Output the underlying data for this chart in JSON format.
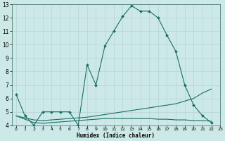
{
  "xlabel": "Humidex (Indice chaleur)",
  "bg_color": "#cce9e7",
  "grid_color": "#b8d8d6",
  "line_color": "#1a6e66",
  "xlim": [
    -0.5,
    23
  ],
  "ylim": [
    4,
    13
  ],
  "xticks": [
    0,
    1,
    2,
    3,
    4,
    5,
    6,
    7,
    8,
    9,
    10,
    11,
    12,
    13,
    14,
    15,
    16,
    17,
    18,
    19,
    20,
    21,
    22,
    23
  ],
  "yticks": [
    4,
    5,
    6,
    7,
    8,
    9,
    10,
    11,
    12,
    13
  ],
  "series": [
    {
      "x": [
        0,
        1,
        2,
        3,
        4,
        5,
        6,
        7,
        8,
        9,
        10,
        11,
        12,
        13,
        14,
        15,
        16,
        17,
        18,
        19,
        20,
        21,
        22
      ],
      "y": [
        6.3,
        4.7,
        4.0,
        5.0,
        5.0,
        5.0,
        5.0,
        4.0,
        8.5,
        7.0,
        9.9,
        11.0,
        12.1,
        12.9,
        12.5,
        12.5,
        12.0,
        10.7,
        9.5,
        7.0,
        5.5,
        4.7,
        4.2
      ],
      "marker": true
    },
    {
      "x": [
        0,
        1,
        2,
        3,
        4,
        5,
        6,
        7,
        8,
        9,
        10,
        11,
        12,
        13,
        14,
        15,
        16,
        17,
        18,
        19,
        20,
        21,
        22
      ],
      "y": [
        4.7,
        4.55,
        4.4,
        4.35,
        4.4,
        4.45,
        4.5,
        4.55,
        4.6,
        4.7,
        4.8,
        4.9,
        5.0,
        5.1,
        5.2,
        5.3,
        5.4,
        5.5,
        5.6,
        5.8,
        6.0,
        6.4,
        6.7
      ],
      "marker": false
    },
    {
      "x": [
        0,
        1,
        2,
        3,
        4,
        5,
        6,
        7,
        8,
        9,
        10,
        11,
        12,
        13,
        14,
        15,
        16,
        17,
        18,
        19,
        20,
        21,
        22
      ],
      "y": [
        4.7,
        4.45,
        4.2,
        4.15,
        4.2,
        4.25,
        4.3,
        4.35,
        4.4,
        4.45,
        4.5,
        4.5,
        4.5,
        4.5,
        4.5,
        4.5,
        4.45,
        4.45,
        4.4,
        4.4,
        4.35,
        4.35,
        4.3
      ],
      "marker": false
    }
  ]
}
